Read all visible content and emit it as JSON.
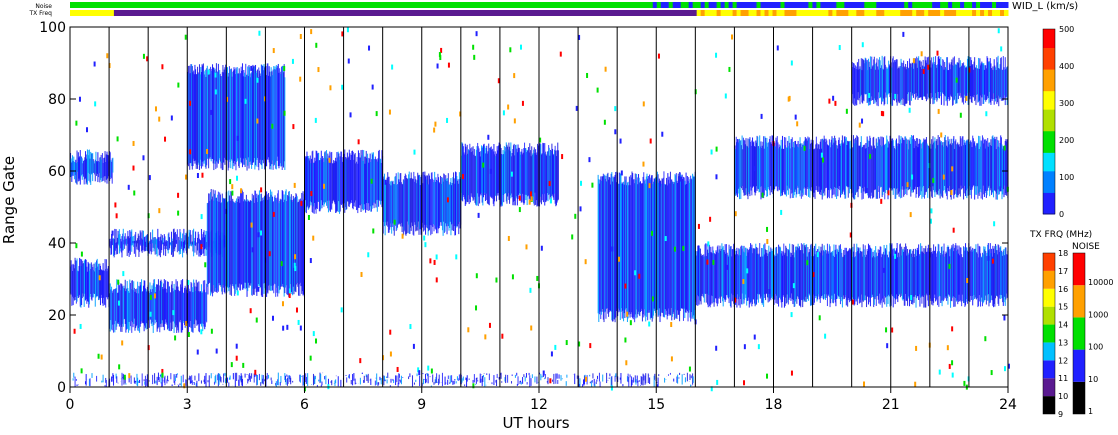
{
  "chart_data": {
    "type": "heatmap",
    "xlabel": "UT hours",
    "ylabel": "Range Gate",
    "xlim": [
      0,
      24
    ],
    "ylim": [
      0,
      100
    ],
    "x_ticks": [
      "0",
      "3",
      "6",
      "9",
      "12",
      "15",
      "18",
      "21",
      "24"
    ],
    "y_ticks": [
      "0",
      "20",
      "40",
      "60",
      "80",
      "100"
    ],
    "grid": "vertical lines every hour",
    "top_bars": [
      {
        "label": "Noise",
        "colors": [
          "#00e000",
          "#2020ff",
          "#00e000",
          "#2020ff"
        ]
      },
      {
        "label": "TX Freq",
        "colors": [
          "#ffff00",
          "#5a1a90",
          "#ffa000"
        ]
      }
    ],
    "colorbars": [
      {
        "title": "WID_L (km/s)",
        "ticks": [
          "0",
          "100",
          "200",
          "300",
          "400",
          "500"
        ]
      },
      {
        "title": "TX FRQ (MHz)",
        "ticks": [
          "9",
          "10",
          "11",
          "12",
          "13",
          "14",
          "15",
          "16",
          "17",
          "18"
        ]
      },
      {
        "title": "NOISE",
        "ticks": [
          "1",
          "10",
          "100",
          "1000",
          "10000"
        ]
      }
    ],
    "bands": [
      {
        "t": [
          0,
          1
        ],
        "gate": [
          22,
          36
        ]
      },
      {
        "t": [
          0,
          1.1
        ],
        "gate": [
          56,
          66
        ]
      },
      {
        "t": [
          1,
          3.5
        ],
        "gate": [
          15,
          30
        ]
      },
      {
        "t": [
          1,
          4
        ],
        "gate": [
          36,
          44
        ]
      },
      {
        "t": [
          3.5,
          6
        ],
        "gate": [
          25,
          55
        ]
      },
      {
        "t": [
          6,
          8
        ],
        "gate": [
          48,
          66
        ]
      },
      {
        "t": [
          8,
          10
        ],
        "gate": [
          42,
          60
        ]
      },
      {
        "t": [
          10,
          12.5
        ],
        "gate": [
          50,
          68
        ]
      },
      {
        "t": [
          13.5,
          16
        ],
        "gate": [
          18,
          60
        ]
      },
      {
        "t": [
          16,
          24
        ],
        "gate": [
          22,
          40
        ]
      },
      {
        "t": [
          17,
          24
        ],
        "gate": [
          52,
          70
        ]
      },
      {
        "t": [
          3,
          5.5
        ],
        "gate": [
          60,
          90
        ]
      },
      {
        "t": [
          20,
          24
        ],
        "gate": [
          78,
          92
        ]
      },
      {
        "t": [
          0,
          16
        ],
        "gate": [
          0,
          4
        ]
      }
    ],
    "band_colors": [
      "#1010ff",
      "#2020e0",
      "#3030ff",
      "#00a0ff"
    ],
    "scatter_colors": [
      "#ff0000",
      "#00e000",
      "#ffa000",
      "#00ffff",
      "#2020ff"
    ]
  }
}
